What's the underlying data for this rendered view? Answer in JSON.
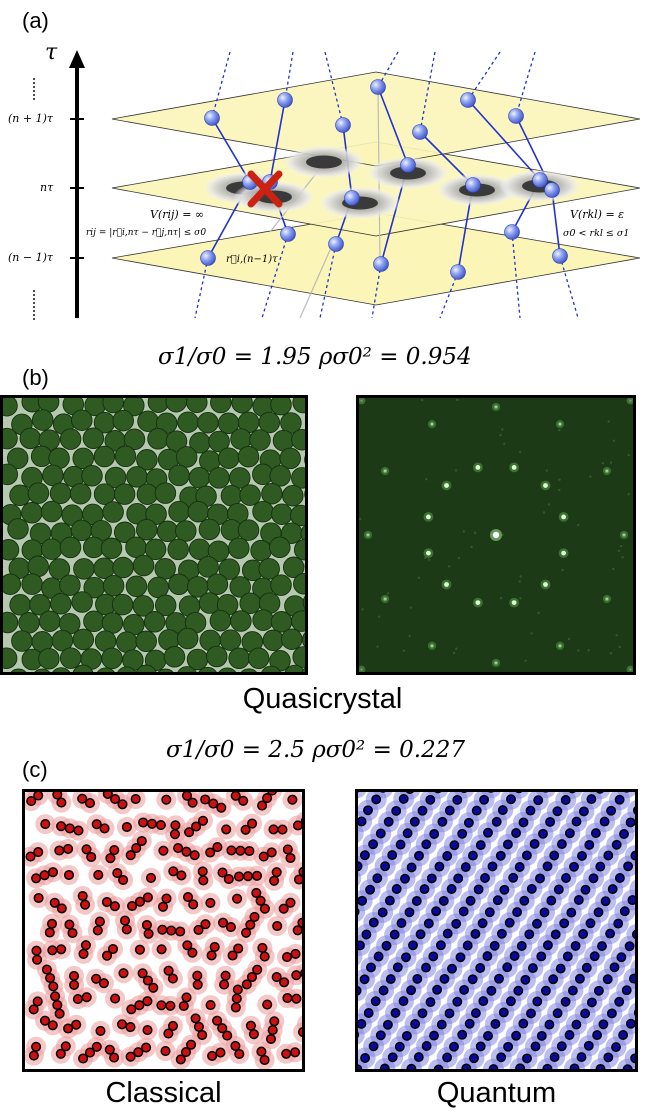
{
  "panel_a": {
    "label": "(a)",
    "axis_symbol": "τ",
    "ticks": [
      "(n + 1)τ",
      "nτ",
      "(n − 1)τ"
    ],
    "left_formula": "V(rij) = ∞",
    "left_condition": "rij = |r⃗i,nτ − r⃗j,nτ| ≤ σ0",
    "position_label": "r⃗i,(n−1)τ",
    "right_formula": "V(rkl) = ε",
    "right_condition": "σ0 < rkl ≤ σ1",
    "colors": {
      "plane": "#fbf5b8",
      "bead": "#8aa0f0",
      "worldline": "#2233cc",
      "cross": "#cc2211"
    },
    "icons": [
      "cross-mark-icon"
    ]
  },
  "panel_b": {
    "label": "(b)",
    "equation": "σ1/σ0 = 1.95   ρσ0² = 0.954",
    "caption": "Quasicrystal",
    "colors": {
      "particle": "#2f5a22",
      "background": "#a9c0a3",
      "fft": "#1d3a16",
      "peak": "#d8ffd0"
    }
  },
  "panel_c": {
    "label": "(c)",
    "equation": "σ1/σ0 = 2.5   ρσ0² = 0.227",
    "caption_left": "Classical",
    "caption_right": "Quantum",
    "colors": {
      "classical": "#cc1111",
      "classical_halo": "#ec9a9a",
      "quantum": "#0a0a9a",
      "quantum_halo": "#7a7ee0"
    }
  }
}
